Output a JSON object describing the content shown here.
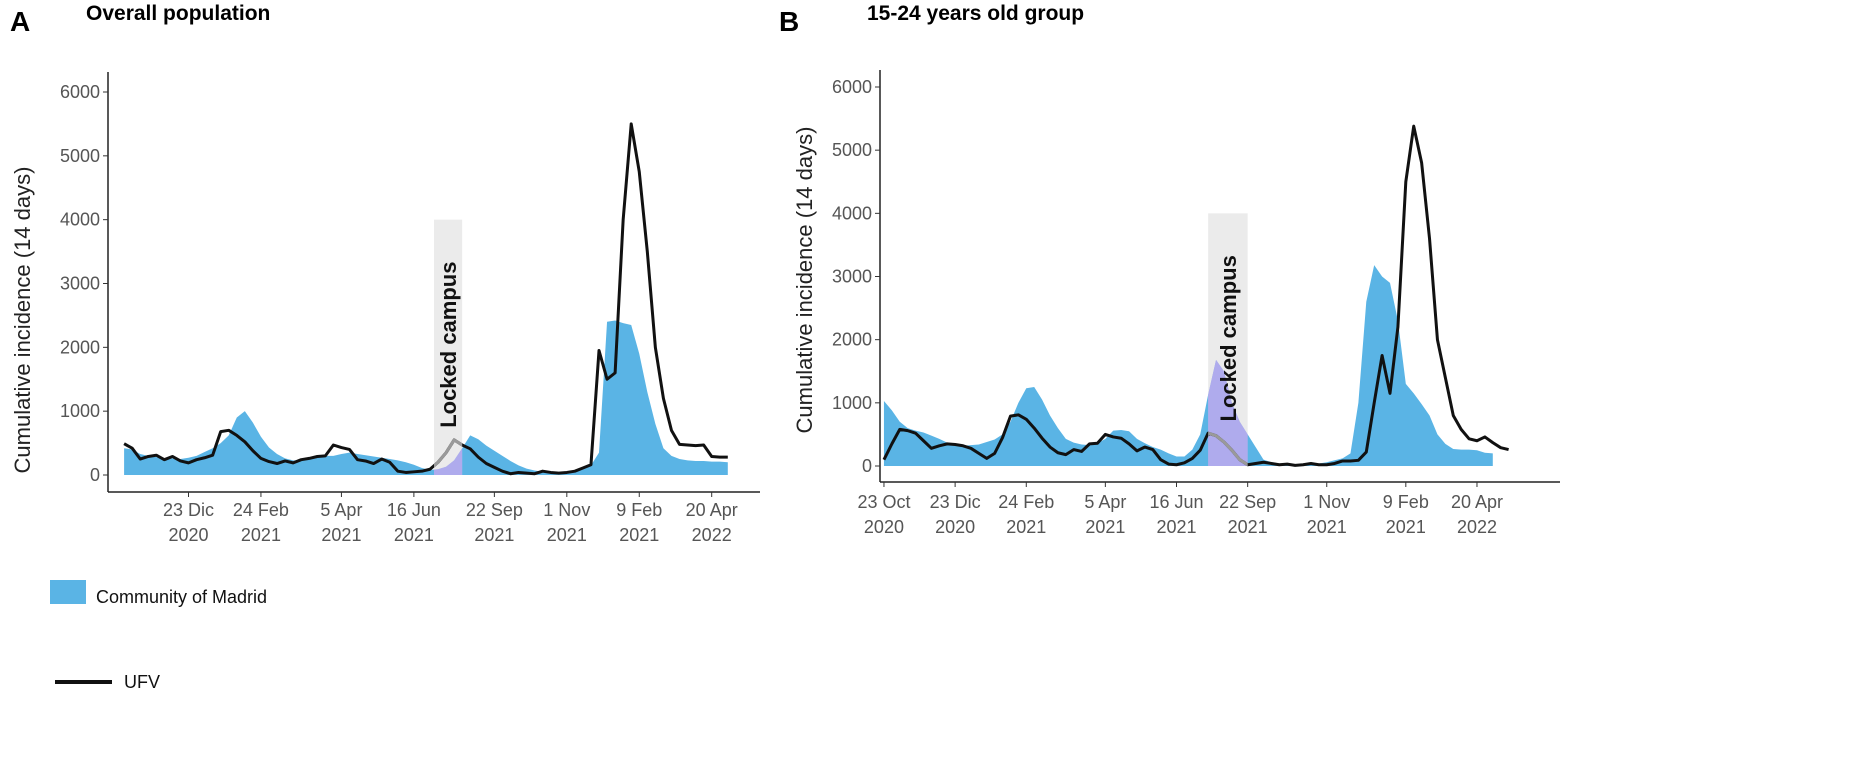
{
  "legend": {
    "area_label": "Community of Madrid",
    "line_label": "UFV",
    "area_color": "#5ab4e5",
    "line_color": "#111111"
  },
  "chart_data": [
    {
      "type": "area",
      "panel_letter": "A",
      "title": "Overall population",
      "ylabel": "Cumulative incidence  (14 days)",
      "xlabel": "",
      "ylim": [
        0,
        6000
      ],
      "yticks": [
        0,
        1000,
        2000,
        3000,
        4000,
        5000,
        6000
      ],
      "xlim": [
        -2,
        79
      ],
      "xticks": [
        {
          "pos": 8,
          "line1": "23 Dic",
          "line2": "2020"
        },
        {
          "pos": 17,
          "line1": "24 Feb",
          "line2": "2021"
        },
        {
          "pos": 27,
          "line1": "5 Apr",
          "line2": "2021"
        },
        {
          "pos": 36,
          "line1": "16 Jun",
          "line2": "2021"
        },
        {
          "pos": 46,
          "line1": "22 Sep",
          "line2": "2021"
        },
        {
          "pos": 55,
          "line1": "1 Nov",
          "line2": "2021"
        },
        {
          "pos": 64,
          "line1": "9 Feb",
          "line2": "2021"
        },
        {
          "pos": 73,
          "line1": "20 Apr",
          "line2": "2022"
        }
      ],
      "shaded_region": {
        "label": "Locked campus",
        "x0": 38.5,
        "x1": 42,
        "y_top": 4000
      },
      "series": [
        {
          "name": "Community of Madrid",
          "kind": "area",
          "values": [
            420,
            400,
            330,
            300,
            280,
            260,
            260,
            250,
            270,
            300,
            360,
            420,
            500,
            620,
            900,
            1000,
            820,
            600,
            430,
            330,
            260,
            230,
            230,
            260,
            290,
            300,
            300,
            330,
            350,
            330,
            310,
            290,
            270,
            250,
            230,
            200,
            160,
            110,
            80,
            90,
            130,
            230,
            420,
            620,
            560,
            460,
            380,
            300,
            220,
            150,
            100,
            70,
            50,
            40,
            40,
            50,
            70,
            100,
            150,
            350,
            2400,
            2420,
            2380,
            2350,
            1900,
            1300,
            800,
            420,
            300,
            250,
            230,
            220,
            220,
            210,
            210,
            200
          ]
        },
        {
          "name": "UFV",
          "kind": "line",
          "values": [
            490,
            420,
            250,
            290,
            310,
            240,
            290,
            220,
            190,
            240,
            270,
            310,
            680,
            700,
            620,
            520,
            380,
            260,
            210,
            180,
            220,
            190,
            240,
            260,
            290,
            300,
            470,
            430,
            400,
            240,
            220,
            180,
            250,
            200,
            60,
            40,
            50,
            60,
            90,
            200,
            350,
            550,
            470,
            410,
            280,
            180,
            120,
            60,
            20,
            40,
            30,
            20,
            60,
            40,
            30,
            40,
            60,
            110,
            160,
            1950,
            1500,
            1600,
            4000,
            5500,
            4750,
            3500,
            2000,
            1200,
            700,
            480,
            470,
            460,
            470,
            290,
            280,
            280
          ]
        }
      ]
    },
    {
      "type": "area",
      "panel_letter": "B",
      "title": "15-24 years old group",
      "ylabel": "Cumulative incidence  (14 days)",
      "xlabel": "",
      "ylim": [
        0,
        6000
      ],
      "yticks": [
        0,
        1000,
        2000,
        3000,
        4000,
        5000,
        6000
      ],
      "xlim": [
        -0.5,
        85.5
      ],
      "xticks": [
        {
          "pos": 0,
          "line1": "23 Oct",
          "line2": "2020"
        },
        {
          "pos": 9,
          "line1": "23 Dic",
          "line2": "2020"
        },
        {
          "pos": 18,
          "line1": "24 Feb",
          "line2": "2021"
        },
        {
          "pos": 28,
          "line1": "5 Apr",
          "line2": "2021"
        },
        {
          "pos": 37,
          "line1": "16 Jun",
          "line2": "2021"
        },
        {
          "pos": 46,
          "line1": "22 Sep",
          "line2": "2021"
        },
        {
          "pos": 56,
          "line1": "1 Nov",
          "line2": "2021"
        },
        {
          "pos": 66,
          "line1": "9 Feb",
          "line2": "2021"
        },
        {
          "pos": 75,
          "line1": "20 Apr",
          "line2": "2022"
        }
      ],
      "shaded_region": {
        "label": "Locked campus",
        "x0": 41,
        "x1": 46,
        "y_top": 4000
      },
      "series": [
        {
          "name": "Community of Madrid",
          "kind": "area",
          "values": [
            1030,
            880,
            700,
            600,
            560,
            530,
            480,
            430,
            370,
            330,
            320,
            330,
            340,
            380,
            420,
            500,
            700,
            1000,
            1230,
            1250,
            1050,
            800,
            600,
            430,
            370,
            340,
            330,
            360,
            430,
            560,
            570,
            550,
            430,
            360,
            300,
            260,
            200,
            150,
            150,
            260,
            500,
            1130,
            1680,
            1500,
            1000,
            700,
            500,
            300,
            100,
            60,
            40,
            30,
            20,
            20,
            20,
            40,
            60,
            90,
            120,
            200,
            1000,
            2600,
            3180,
            3000,
            2900,
            2300,
            1300,
            1150,
            980,
            800,
            500,
            350,
            270,
            260,
            260,
            250,
            210,
            200
          ]
        },
        {
          "name": "UFV",
          "kind": "line",
          "values": [
            100,
            350,
            580,
            560,
            520,
            400,
            280,
            320,
            350,
            340,
            320,
            280,
            200,
            120,
            200,
            450,
            790,
            810,
            740,
            600,
            440,
            300,
            210,
            180,
            260,
            230,
            350,
            360,
            500,
            460,
            440,
            350,
            240,
            300,
            260,
            100,
            30,
            20,
            50,
            120,
            250,
            520,
            480,
            380,
            250,
            100,
            20,
            40,
            60,
            40,
            20,
            30,
            10,
            20,
            40,
            20,
            20,
            40,
            80,
            80,
            90,
            220,
            1000,
            1750,
            1150,
            2200,
            4500,
            5380,
            4800,
            3600,
            2000,
            1400,
            800,
            580,
            430,
            400,
            460,
            370,
            290,
            260
          ]
        }
      ]
    }
  ]
}
